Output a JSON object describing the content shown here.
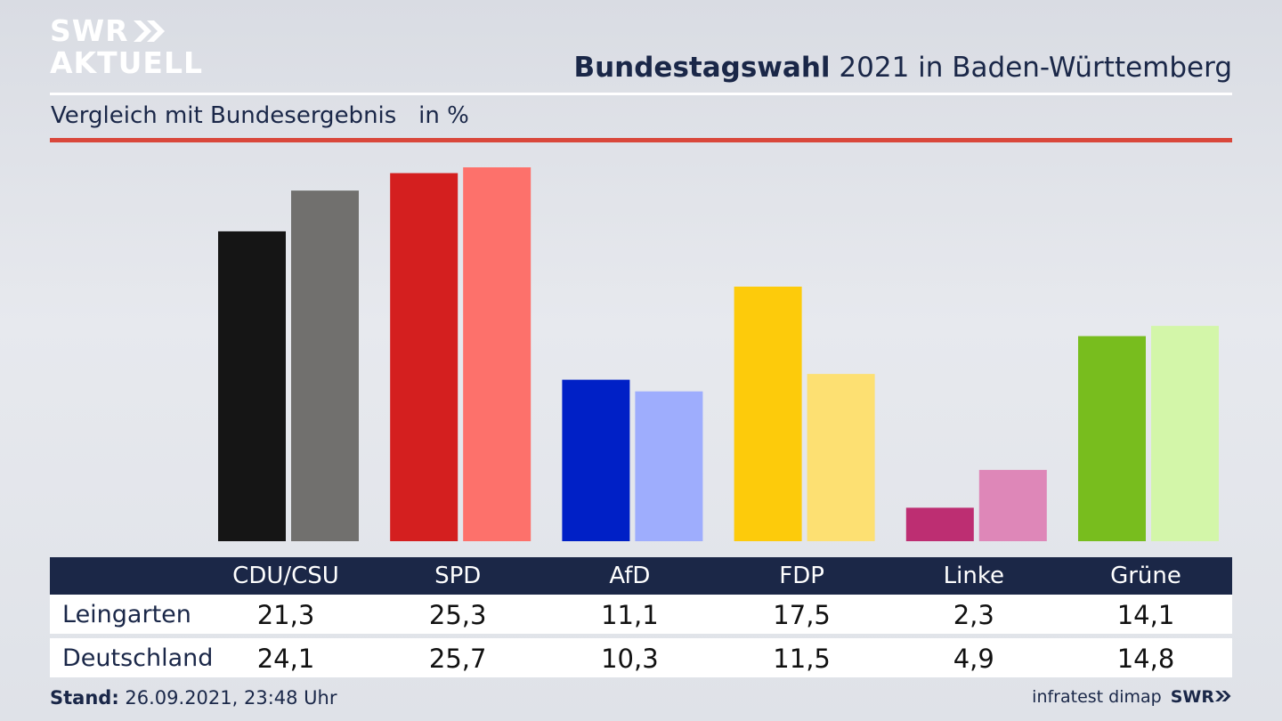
{
  "header": {
    "logo_line1": "SWR",
    "logo_line2": "AKTUELL",
    "title_bold": "Bundestagswahl",
    "title_rest": " 2021 in Baden-Württemberg",
    "subtitle": "Vergleich mit Bundesergebnis   in %"
  },
  "colors": {
    "title_navy": "#1a2748",
    "table_header": "#1b2747",
    "accent_red_rule": "#d9473b"
  },
  "chart_data": {
    "type": "bar",
    "categories": [
      "CDU/CSU",
      "SPD",
      "AfD",
      "FDP",
      "Linke",
      "Grüne"
    ],
    "series": [
      {
        "name": "Leingarten",
        "values": [
          21.3,
          25.3,
          11.1,
          17.5,
          2.3,
          14.1
        ],
        "colors": [
          "#151515",
          "#d41f1f",
          "#0020c6",
          "#fdcb0b",
          "#bd2e72",
          "#78bd1e"
        ]
      },
      {
        "name": "Deutschland",
        "values": [
          24.1,
          25.7,
          10.3,
          11.5,
          4.9,
          14.8
        ],
        "colors": [
          "#71706e",
          "#fd716b",
          "#9eadfd",
          "#fde072",
          "#de87b8",
          "#d3f6a9"
        ]
      }
    ],
    "ylim": [
      0,
      25.7
    ],
    "grid": false,
    "legend": "table below chart"
  },
  "table": {
    "rows": [
      {
        "label": "Leingarten",
        "values": [
          "21,3",
          "25,3",
          "11,1",
          "17,5",
          "2,3",
          "14,1"
        ]
      },
      {
        "label": "Deutschland",
        "values": [
          "24,1",
          "25,7",
          "10,3",
          "11,5",
          "4,9",
          "14,8"
        ]
      }
    ]
  },
  "footer": {
    "stand_label": "Stand:",
    "stand_value": " 26.09.2021, 23:48 Uhr",
    "source": "infratest dimap",
    "source_logo": "SWR"
  }
}
